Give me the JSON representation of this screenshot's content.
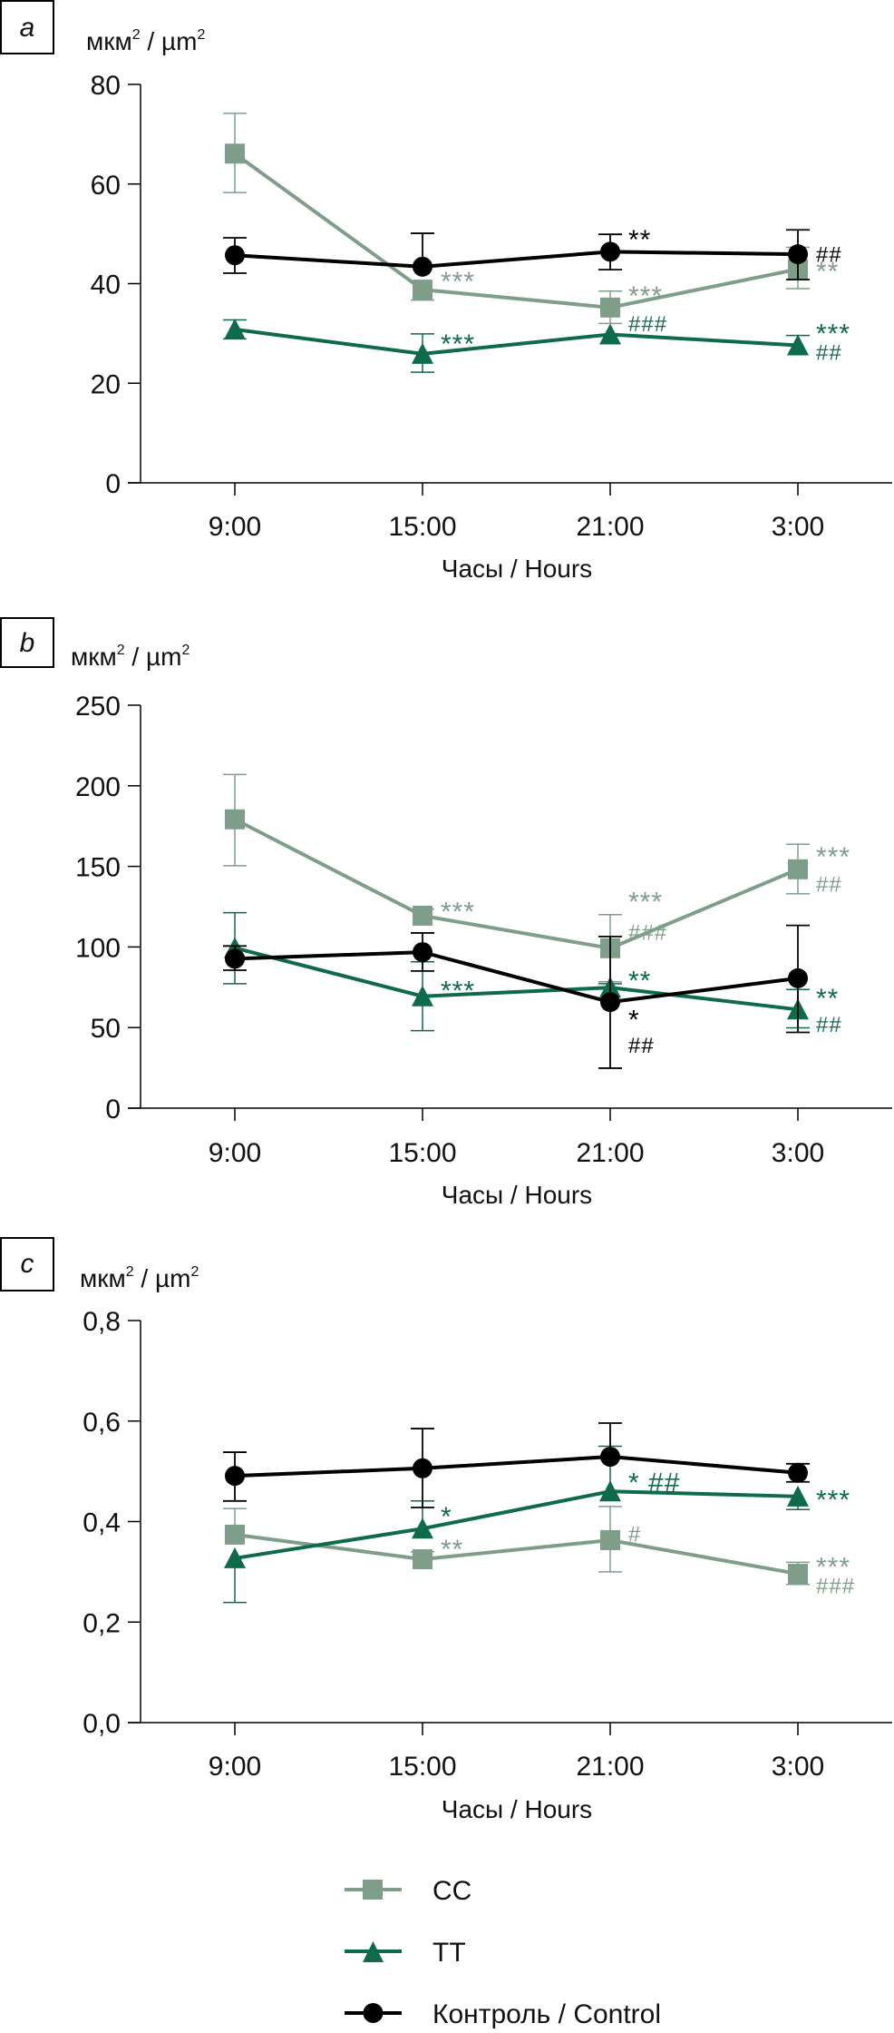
{
  "legend": [
    {
      "label": "CC",
      "series": "CC"
    },
    {
      "label": "TT",
      "series": "TT"
    },
    {
      "label": "Контроль / Control",
      "series": "Control"
    }
  ],
  "colors": {
    "CC": "#7f9e8a",
    "TT": "#0e6b4a",
    "Control": "#000000"
  },
  "chart_data": [
    {
      "panel": "a",
      "type": "line",
      "ylabel": "мкм² / µm²",
      "unit_base": "мкм",
      "unit_sep": " / µm",
      "xlabel": "Часы / Hours",
      "categories": [
        "9:00",
        "15:00",
        "21:00",
        "3:00"
      ],
      "ylim": [
        0,
        80
      ],
      "yticks": [
        "0",
        "20",
        "40",
        "60",
        "80"
      ],
      "ytick_values": [
        0,
        20,
        40,
        60,
        80
      ],
      "grid": false,
      "series": [
        {
          "name": "CC",
          "values": [
            66.1,
            38.8,
            35.2,
            42.9
          ],
          "err_hi": [
            74.2,
            38.8,
            38.5,
            47.3
          ],
          "err_lo": [
            58.3,
            36.7,
            32.0,
            39.0
          ]
        },
        {
          "name": "TT",
          "values": [
            30.8,
            25.9,
            29.8,
            27.6
          ],
          "err_hi": [
            32.7,
            29.9,
            29.8,
            29.6
          ],
          "err_lo": [
            28.9,
            22.2,
            29.8,
            27.6
          ]
        },
        {
          "name": "Control",
          "values": [
            45.7,
            43.4,
            46.4,
            45.9
          ],
          "err_hi": [
            49.2,
            50.1,
            49.9,
            50.8
          ],
          "err_lo": [
            42.1,
            43.4,
            42.8,
            40.8
          ]
        }
      ],
      "annotations": [
        {
          "text": "***",
          "series": "CC",
          "x": "15:00",
          "y": 40.5
        },
        {
          "text": "***",
          "series": "CC",
          "x": "21:00",
          "y": 37.5
        },
        {
          "text": "###",
          "series": "TT",
          "x": "21:00",
          "y": 32.3
        },
        {
          "text": "**",
          "series": "CC",
          "x": "3:00",
          "y": 42.5
        },
        {
          "text": "**",
          "series": "Control",
          "x": "21:00",
          "y": 48.8
        },
        {
          "text": "##",
          "series": "Control",
          "x": "3:00",
          "y": 46.2
        },
        {
          "text": "***",
          "series": "TT",
          "x": "15:00",
          "y": 27.9
        },
        {
          "text": "***",
          "series": "TT",
          "x": "3:00",
          "y": 30.0
        },
        {
          "text": "##",
          "series": "TT",
          "x": "3:00",
          "y": 26.5
        }
      ]
    },
    {
      "panel": "b",
      "type": "line",
      "ylabel": "мкм² / µm²",
      "unit_base": "мкм",
      "unit_sep": " / µm",
      "xlabel": "Часы / Hours",
      "categories": [
        "9:00",
        "15:00",
        "21:00",
        "3:00"
      ],
      "ylim": [
        0,
        250
      ],
      "yticks": [
        "0",
        "50",
        "100",
        "150",
        "200",
        "250"
      ],
      "ytick_values": [
        0,
        50,
        100,
        150,
        200,
        250
      ],
      "grid": false,
      "series": [
        {
          "name": "CC",
          "values": [
            179.2,
            119.4,
            99.2,
            148.2
          ],
          "err_hi": [
            207.0,
            123.5,
            120.1,
            163.7
          ],
          "err_lo": [
            150.4,
            119.4,
            78.4,
            133.0
          ]
        },
        {
          "name": "TT",
          "values": [
            99.4,
            69.4,
            74.8,
            61.2
          ],
          "err_hi": [
            121.3,
            90.8,
            77.2,
            73.6
          ],
          "err_lo": [
            77.2,
            48.1,
            74.8,
            49.8
          ]
        },
        {
          "name": "Control",
          "values": [
            92.7,
            96.8,
            65.8,
            80.6
          ],
          "err_hi": [
            100.6,
            108.7,
            106.5,
            113.4
          ],
          "err_lo": [
            85.6,
            85.1,
            24.8,
            47.0
          ]
        }
      ],
      "annotations": [
        {
          "text": "***",
          "series": "CC",
          "x": "15:00",
          "y": 122
        },
        {
          "text": "***",
          "series": "CC",
          "x": "21:00",
          "y": 128
        },
        {
          "text": "###",
          "series": "CC",
          "x": "21:00",
          "y": 110
        },
        {
          "text": "***",
          "series": "CC",
          "x": "3:00",
          "y": 156
        },
        {
          "text": "##",
          "series": "CC",
          "x": "3:00",
          "y": 140
        },
        {
          "text": "***",
          "series": "TT",
          "x": "15:00",
          "y": 73
        },
        {
          "text": "**",
          "series": "TT",
          "x": "21:00",
          "y": 79
        },
        {
          "text": "*",
          "series": "Control",
          "x": "21:00",
          "y": 55
        },
        {
          "text": "##",
          "series": "Control",
          "x": "21:00",
          "y": 40
        },
        {
          "text": "**",
          "series": "TT",
          "x": "3:00",
          "y": 68
        },
        {
          "text": "##",
          "series": "TT",
          "x": "3:00",
          "y": 53
        }
      ]
    },
    {
      "panel": "c",
      "type": "line",
      "ylabel": "мкм² / µm²",
      "unit_base": "мкм",
      "unit_sep": " / µm",
      "xlabel": "Часы / Hours",
      "categories": [
        "9:00",
        "15:00",
        "21:00",
        "3:00"
      ],
      "ylim": [
        0,
        0.8
      ],
      "yticks": [
        "0,0",
        "0,2",
        "0,4",
        "0,6",
        "0,8"
      ],
      "ytick_values": [
        0,
        0.2,
        0.4,
        0.6,
        0.8
      ],
      "grid": false,
      "series": [
        {
          "name": "CC",
          "values": [
            0.374,
            0.325,
            0.363,
            0.296
          ],
          "err_hi": [
            0.426,
            0.34,
            0.43,
            0.319
          ],
          "err_lo": [
            0.374,
            0.325,
            0.3,
            0.275
          ]
        },
        {
          "name": "TT",
          "values": [
            0.327,
            0.386,
            0.46,
            0.45
          ],
          "err_hi": [
            0.327,
            0.441,
            0.55,
            0.45
          ],
          "err_lo": [
            0.239,
            0.386,
            0.46,
            0.424
          ]
        },
        {
          "name": "Control",
          "values": [
            0.491,
            0.506,
            0.529,
            0.497
          ],
          "err_hi": [
            0.538,
            0.585,
            0.596,
            0.515
          ],
          "err_lo": [
            0.441,
            0.428,
            0.529,
            0.479
          ]
        }
      ],
      "annotations": [
        {
          "text": "*",
          "series": "TT",
          "x": "15:00",
          "y": 0.41
        },
        {
          "text": "**",
          "series": "CC",
          "x": "15:00",
          "y": 0.345
        },
        {
          "text": "* ##",
          "series": "TT",
          "x": "21:00",
          "y": 0.478
        },
        {
          "text": "#",
          "series": "CC",
          "x": "21:00",
          "y": 0.378
        },
        {
          "text": "***",
          "series": "TT",
          "x": "3:00",
          "y": 0.443
        },
        {
          "text": "***",
          "series": "CC",
          "x": "3:00",
          "y": 0.31
        },
        {
          "text": "###",
          "series": "CC",
          "x": "3:00",
          "y": 0.275
        }
      ]
    }
  ]
}
